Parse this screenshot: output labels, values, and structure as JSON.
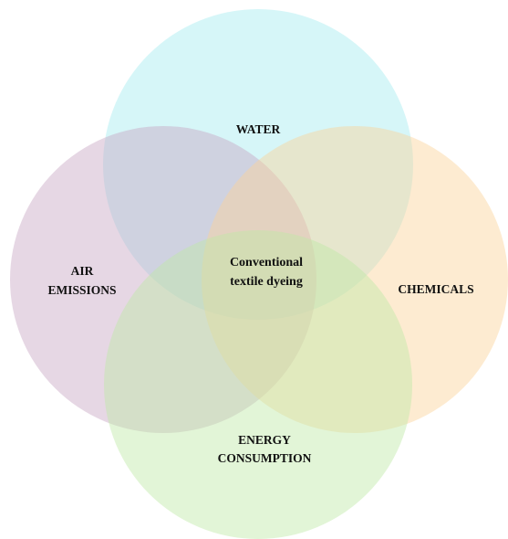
{
  "circles": [
    {
      "label": [
        "WATER"
      ]
    },
    {
      "label": [
        "AIR",
        "EMISSIONS"
      ]
    },
    {
      "label": [
        "CHEMICALS"
      ]
    },
    {
      "label": [
        "ENERGY",
        "CONSUMPTION"
      ]
    }
  ],
  "center": {
    "label": [
      "Conventional",
      "textile dyeing"
    ]
  }
}
